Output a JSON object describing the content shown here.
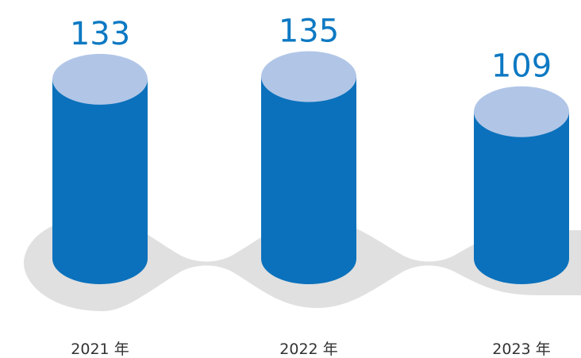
{
  "chart_data": {
    "type": "bar",
    "style": "3d-cylinder",
    "categories": [
      "2021 年",
      "2022 年",
      "2023 年"
    ],
    "values": [
      133,
      135,
      109
    ],
    "title": "",
    "xlabel": "",
    "ylabel": "",
    "grid": false,
    "legend": "none"
  },
  "colors": {
    "bar_body": "#0b71bc",
    "bar_top": "#b1c6e7",
    "value_text": "#0d79c3",
    "year_text": "#333333",
    "shadow": "#e0e0e0"
  }
}
